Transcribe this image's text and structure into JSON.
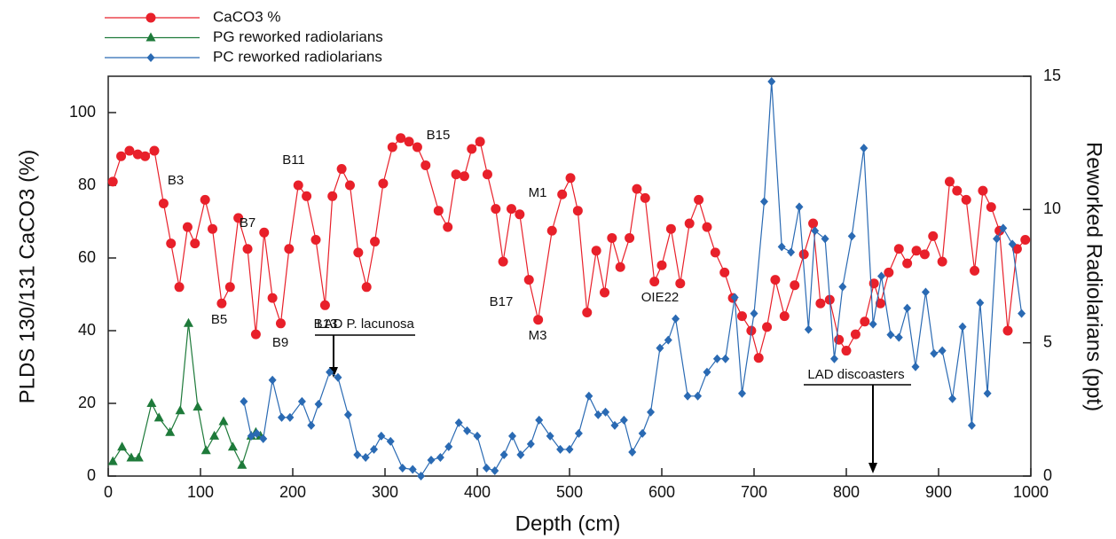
{
  "chart_data": {
    "type": "line",
    "xlabel": "Depth  (cm)",
    "ylabel": "PLDS 130/131 CaCO3 (%)",
    "y2label": "Reworked Radiolarians (ppt)",
    "xlim": [
      0,
      1000
    ],
    "xticks": [
      0,
      100,
      200,
      300,
      400,
      500,
      600,
      700,
      800,
      900,
      1000
    ],
    "ylim": [
      0,
      110
    ],
    "yticks": [
      0,
      20,
      40,
      60,
      80,
      100
    ],
    "y2lim": [
      0,
      15
    ],
    "y2ticks": [
      0,
      5,
      10,
      15
    ],
    "legend": "top-left",
    "annotations": [
      "B3",
      "B5",
      "B7",
      "B9",
      "B11",
      "B13",
      "B15",
      "B17",
      "M1",
      "M3",
      "OIE22",
      "LAD P. lacunosa",
      "LAD discoasters"
    ],
    "series": [
      {
        "name": "CaCO3 %",
        "color": "#e8202a",
        "marker": "circle",
        "x": [
          5,
          14,
          23,
          32,
          40,
          50,
          60,
          68,
          77,
          86,
          94,
          105,
          113,
          123,
          132,
          141,
          151,
          160,
          169,
          178,
          187,
          196,
          206,
          215,
          225,
          235,
          243,
          253,
          262,
          271,
          280,
          289,
          298,
          308,
          317,
          326,
          335,
          344,
          358,
          368,
          377,
          386,
          394,
          403,
          411,
          420,
          428,
          437,
          446,
          456,
          466,
          481,
          492,
          501,
          509,
          519,
          529,
          538,
          546,
          555,
          565,
          573,
          582,
          592,
          600,
          610,
          620,
          630,
          640,
          649,
          658,
          668,
          677,
          687,
          697,
          705,
          714,
          723,
          733,
          744,
          754,
          764,
          772,
          782,
          792,
          800,
          810,
          820,
          830,
          837,
          846,
          857,
          866,
          876,
          885,
          894,
          904,
          912,
          920,
          930,
          939,
          948,
          957,
          966,
          975,
          985,
          994
        ],
        "values": [
          81,
          88,
          89.5,
          88.5,
          88,
          89.5,
          75,
          64,
          52,
          68.5,
          64,
          76,
          68,
          47.5,
          52,
          71,
          62.5,
          39,
          67,
          49,
          42,
          62.5,
          80,
          77,
          65,
          47,
          77,
          84.5,
          80,
          61.5,
          52,
          64.5,
          80.5,
          90.5,
          93,
          92,
          90.5,
          85.5,
          73,
          68.5,
          83,
          82.5,
          90,
          92,
          83,
          73.5,
          59,
          73.5,
          72,
          54,
          43,
          67.5,
          77.5,
          82,
          73,
          45,
          62,
          50.5,
          65.5,
          57.5,
          65.5,
          79,
          76.5,
          53.5,
          58,
          68,
          53,
          69.5,
          76,
          68.5,
          61.5,
          56,
          49,
          44,
          40,
          32.5,
          41,
          54,
          44,
          52.5,
          61,
          69.5,
          47.5,
          48.5,
          37.5,
          34.5,
          39,
          42.5,
          53,
          47.5,
          56,
          62.5,
          58.5,
          62,
          61,
          66,
          59,
          81,
          78.5,
          76,
          56.5,
          78.5,
          74,
          67.5,
          40,
          62.5,
          65
        ]
      },
      {
        "name": "PG reworked radiolarians",
        "color": "#1e7a3a",
        "marker": "triangle",
        "x": [
          5,
          15,
          25,
          33,
          47,
          55,
          67,
          78,
          87,
          97,
          106,
          115,
          125,
          135,
          145,
          155,
          160,
          165
        ],
        "values": [
          4,
          8,
          5,
          5,
          20,
          16,
          12,
          18,
          42,
          19,
          7,
          11,
          15,
          8,
          3,
          11,
          12,
          11
        ]
      },
      {
        "name": "PC reworked radiolarians",
        "color": "#2a6ab3",
        "marker": "diamond",
        "axis": "y2",
        "x": [
          147,
          155,
          161,
          168,
          178,
          188,
          197,
          210,
          220,
          228,
          240,
          249,
          260,
          270,
          279,
          288,
          296,
          306,
          319,
          330,
          339,
          350,
          360,
          369,
          380,
          389,
          400,
          410,
          419,
          429,
          438,
          447,
          458,
          467,
          479,
          490,
          500,
          510,
          521,
          531,
          539,
          549,
          559,
          568,
          579,
          588,
          598,
          607,
          615,
          628,
          639,
          649,
          660,
          669,
          679,
          687,
          700,
          711,
          719,
          730,
          740,
          749,
          759,
          766,
          777,
          787,
          796,
          806,
          819,
          829,
          838,
          848,
          857,
          866,
          875,
          886,
          895,
          904,
          915,
          926,
          936,
          945,
          953,
          963,
          970,
          980,
          990
        ],
        "values": [
          2.8,
          1.5,
          1.6,
          1.4,
          3.6,
          2.2,
          2.2,
          2.8,
          1.9,
          2.7,
          3.9,
          3.7,
          2.3,
          0.8,
          0.7,
          1.0,
          1.5,
          1.3,
          0.3,
          0.25,
          0,
          0.6,
          0.7,
          1.1,
          2.0,
          1.7,
          1.5,
          0.3,
          0.2,
          0.8,
          1.5,
          0.8,
          1.2,
          2.1,
          1.5,
          1.0,
          1.0,
          1.6,
          3.0,
          2.3,
          2.4,
          1.9,
          2.1,
          0.9,
          1.6,
          2.4,
          4.8,
          5.1,
          5.9,
          3.0,
          3.0,
          3.9,
          4.4,
          4.4,
          6.7,
          3.1,
          6.1,
          10.3,
          14.8,
          8.6,
          8.4,
          10.1,
          5.5,
          9.2,
          8.9,
          4.4,
          7.1,
          9.0,
          12.3,
          5.7,
          7.5,
          5.3,
          5.2,
          6.3,
          4.1,
          6.9,
          4.6,
          4.7,
          2.9,
          5.6,
          1.9,
          6.5,
          3.1,
          8.9,
          9.3,
          8.7,
          6.1
        ]
      }
    ]
  }
}
